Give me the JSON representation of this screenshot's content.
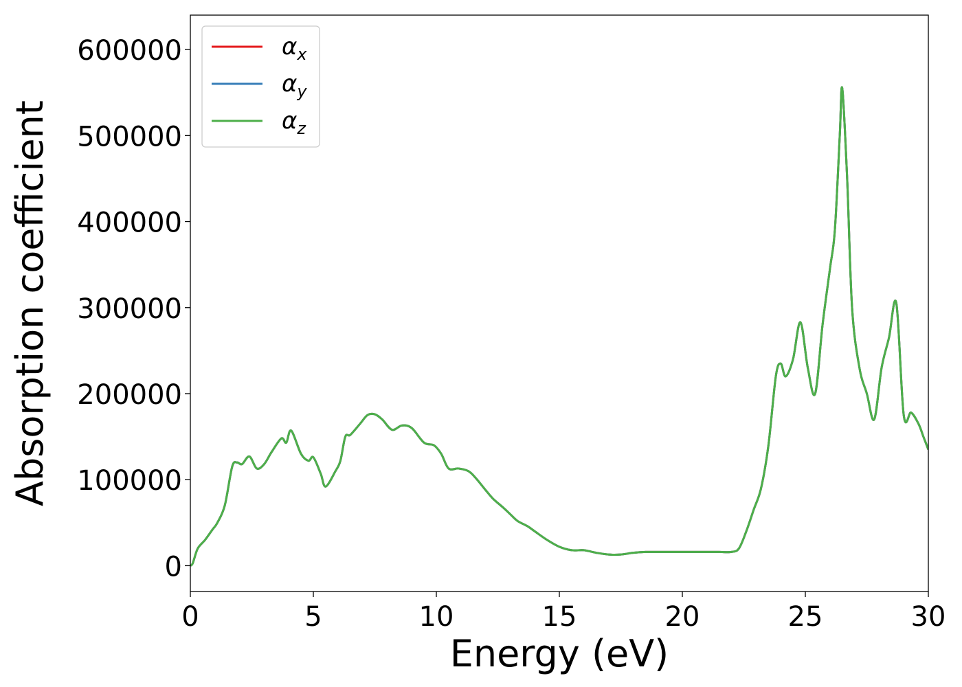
{
  "chart_data": {
    "type": "line",
    "title": "",
    "xlabel": "Energy (eV)",
    "ylabel": "Absorption coefficient",
    "xlim": [
      0,
      30
    ],
    "ylim": [
      -30000,
      640000
    ],
    "xticks": [
      0,
      5,
      10,
      15,
      20,
      25,
      30
    ],
    "yticks": [
      0,
      100000,
      200000,
      300000,
      400000,
      500000,
      600000
    ],
    "xtick_labels": [
      "0",
      "5",
      "10",
      "15",
      "20",
      "25",
      "30"
    ],
    "ytick_labels": [
      "0",
      "100000",
      "200000",
      "300000",
      "400000",
      "500000",
      "600000"
    ],
    "grid": false,
    "legend_position": "top-left",
    "series": [
      {
        "name": "α",
        "subscript": "x",
        "color": "#e41a1c"
      },
      {
        "name": "α",
        "subscript": "y",
        "color": "#377eb8"
      },
      {
        "name": "α",
        "subscript": "z",
        "color": "#4daf4a"
      }
    ],
    "x": [
      0,
      0.1,
      0.3,
      0.6,
      0.9,
      1.1,
      1.4,
      1.7,
      1.9,
      2.1,
      2.4,
      2.7,
      3.0,
      3.3,
      3.7,
      3.9,
      4.1,
      4.5,
      4.8,
      5.0,
      5.3,
      5.5,
      5.9,
      6.1,
      6.3,
      6.5,
      6.9,
      7.2,
      7.5,
      7.8,
      8.2,
      8.6,
      9.0,
      9.5,
      9.9,
      10.2,
      10.5,
      10.9,
      11.3,
      11.6,
      12.0,
      12.3,
      12.7,
      13.0,
      13.3,
      13.7,
      14.0,
      14.5,
      15.0,
      15.5,
      16.0,
      16.5,
      17.0,
      17.5,
      18.0,
      18.5,
      19.0,
      19.5,
      20.0,
      20.5,
      21.0,
      21.5,
      22.0,
      22.3,
      22.6,
      22.9,
      23.2,
      23.5,
      23.8,
      24.0,
      24.2,
      24.5,
      24.8,
      25.1,
      25.4,
      25.7,
      26.0,
      26.2,
      26.4,
      26.5,
      26.7,
      26.9,
      27.2,
      27.5,
      27.8,
      28.1,
      28.4,
      28.7,
      29.0,
      29.3,
      29.6,
      29.8,
      30.0
    ],
    "values": [
      0,
      3000,
      20000,
      30000,
      42000,
      50000,
      70000,
      115000,
      120000,
      118000,
      127000,
      113000,
      118000,
      132000,
      148000,
      143000,
      157000,
      130000,
      122000,
      126000,
      107000,
      92000,
      110000,
      122000,
      150000,
      152000,
      165000,
      175000,
      176000,
      170000,
      158000,
      163000,
      160000,
      143000,
      140000,
      130000,
      113000,
      113000,
      110000,
      102000,
      88000,
      78000,
      68000,
      60000,
      52000,
      46000,
      40000,
      30000,
      22000,
      18000,
      18000,
      15000,
      13000,
      13000,
      15000,
      16000,
      16000,
      16000,
      16000,
      16000,
      16000,
      16000,
      16000,
      20000,
      40000,
      65000,
      90000,
      140000,
      220000,
      235000,
      220000,
      240000,
      283000,
      230000,
      200000,
      280000,
      345000,
      390000,
      500000,
      555000,
      450000,
      300000,
      230000,
      200000,
      170000,
      230000,
      265000,
      305000,
      175000,
      178000,
      165000,
      150000,
      135000
    ]
  }
}
